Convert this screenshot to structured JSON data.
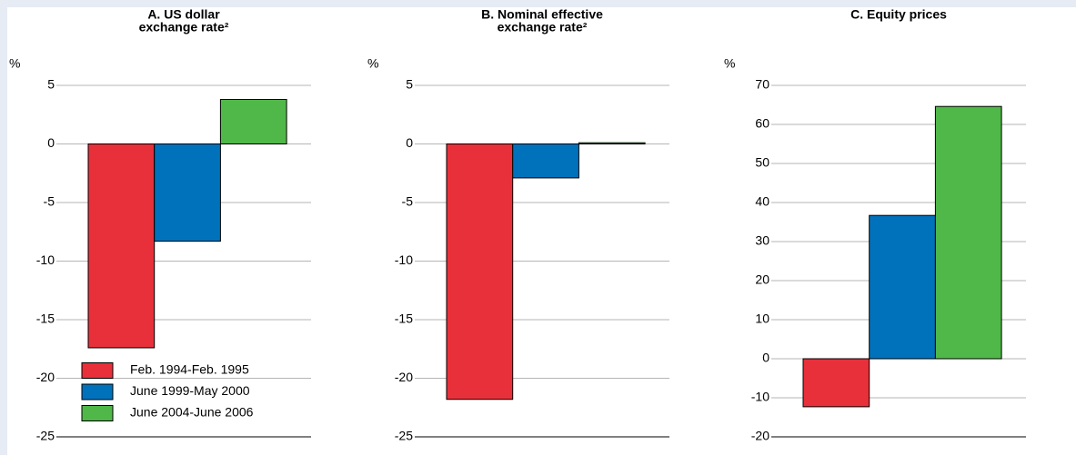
{
  "chart_data": [
    {
      "type": "bar",
      "title": [
        "A. US dollar",
        "exchange rate²"
      ],
      "y_label": "%",
      "ylim": [
        -25,
        5
      ],
      "yticks": [
        5,
        0,
        -5,
        -10,
        -15,
        -20,
        -25
      ],
      "grid": true,
      "legend": "lower left",
      "series": [
        {
          "name": "Feb. 1994-Feb. 1995",
          "color": "#e8303a",
          "values": [
            -17.4
          ]
        },
        {
          "name": "June 1999-May 2000",
          "color": "#0072bc",
          "values": [
            -8.3
          ]
        },
        {
          "name": "June 2004-June 2006",
          "color": "#50b848",
          "values": [
            3.8
          ]
        }
      ]
    },
    {
      "type": "bar",
      "title": [
        "B. Nominal effective",
        "exchange rate²"
      ],
      "y_label": "%",
      "ylim": [
        -25,
        5
      ],
      "yticks": [
        5,
        0,
        -5,
        -10,
        -15,
        -20,
        -25
      ],
      "grid": true,
      "series": [
        {
          "color": "#e8303a",
          "values": [
            -21.8
          ]
        },
        {
          "color": "#0072bc",
          "values": [
            -2.9
          ]
        },
        {
          "color": "#50b848",
          "values": [
            0.1
          ]
        }
      ]
    },
    {
      "type": "bar",
      "title": [
        "C. Equity prices"
      ],
      "y_label": "%",
      "ylim": [
        -20,
        70
      ],
      "yticks": [
        70,
        60,
        50,
        40,
        30,
        20,
        10,
        0,
        -10,
        -20
      ],
      "grid": true,
      "series": [
        {
          "color": "#e8303a",
          "values": [
            -12.3
          ]
        },
        {
          "color": "#0072bc",
          "values": [
            36.7
          ]
        },
        {
          "color": "#50b848",
          "values": [
            64.6
          ]
        }
      ]
    }
  ]
}
